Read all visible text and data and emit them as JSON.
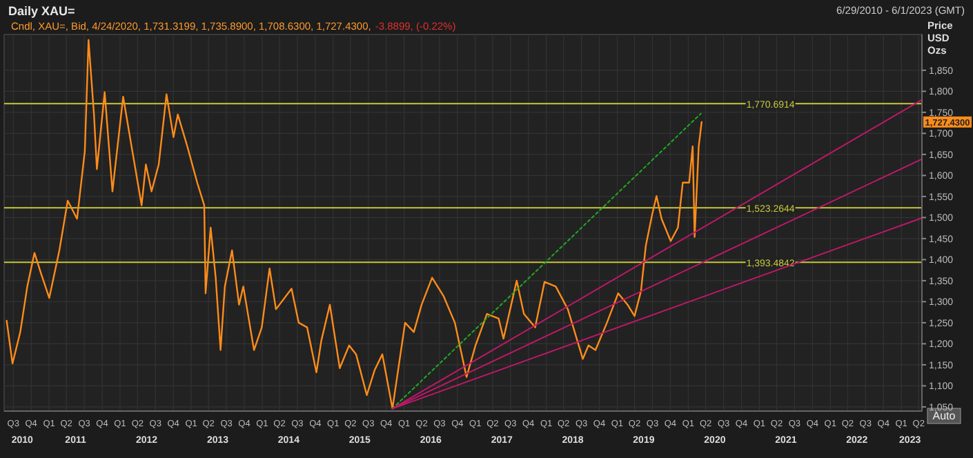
{
  "chart_data": {
    "type": "line",
    "title": "Daily XAU=",
    "subtitle": "6/29/2010 - 6/1/2023 (GMT)",
    "ylabel": "Price USD Ozs",
    "xlim": [
      "2010-06-29",
      "2023-06-01"
    ],
    "ylim": [
      1040,
      1935
    ],
    "yticks": [
      {
        "value": 1050,
        "label": "1,050"
      },
      {
        "value": 1100,
        "label": "1,100"
      },
      {
        "value": 1150,
        "label": "1,150"
      },
      {
        "value": 1200,
        "label": "1,200"
      },
      {
        "value": 1250,
        "label": "1,250"
      },
      {
        "value": 1300,
        "label": "1,300"
      },
      {
        "value": 1350,
        "label": "1,350"
      },
      {
        "value": 1400,
        "label": "1,400"
      },
      {
        "value": 1450,
        "label": "1,450"
      },
      {
        "value": 1500,
        "label": "1,500"
      },
      {
        "value": 1550,
        "label": "1,550"
      },
      {
        "value": 1600,
        "label": "1,600"
      },
      {
        "value": 1650,
        "label": "1,650"
      },
      {
        "value": 1700,
        "label": "1,700"
      },
      {
        "value": 1750,
        "label": "1,750"
      },
      {
        "value": 1800,
        "label": "1,800"
      },
      {
        "value": 1850,
        "label": "1,850"
      }
    ],
    "xticks": [
      {
        "value": "2010-08-15",
        "label": "Q3"
      },
      {
        "value": "2010-11-15",
        "label": "Q4"
      },
      {
        "value": "2011-02-15",
        "label": "Q1"
      },
      {
        "value": "2011-05-15",
        "label": "Q2"
      },
      {
        "value": "2011-08-15",
        "label": "Q3"
      },
      {
        "value": "2011-11-15",
        "label": "Q4"
      },
      {
        "value": "2012-02-15",
        "label": "Q1"
      },
      {
        "value": "2012-05-15",
        "label": "Q2"
      },
      {
        "value": "2012-08-15",
        "label": "Q3"
      },
      {
        "value": "2012-11-15",
        "label": "Q4"
      },
      {
        "value": "2013-02-15",
        "label": "Q1"
      },
      {
        "value": "2013-05-15",
        "label": "Q2"
      },
      {
        "value": "2013-08-15",
        "label": "Q3"
      },
      {
        "value": "2013-11-15",
        "label": "Q4"
      },
      {
        "value": "2014-02-15",
        "label": "Q1"
      },
      {
        "value": "2014-05-15",
        "label": "Q2"
      },
      {
        "value": "2014-08-15",
        "label": "Q3"
      },
      {
        "value": "2014-11-15",
        "label": "Q4"
      },
      {
        "value": "2015-02-15",
        "label": "Q1"
      },
      {
        "value": "2015-05-15",
        "label": "Q2"
      },
      {
        "value": "2015-08-15",
        "label": "Q3"
      },
      {
        "value": "2015-11-15",
        "label": "Q4"
      },
      {
        "value": "2016-02-15",
        "label": "Q1"
      },
      {
        "value": "2016-05-15",
        "label": "Q2"
      },
      {
        "value": "2016-08-15",
        "label": "Q3"
      },
      {
        "value": "2016-11-15",
        "label": "Q4"
      },
      {
        "value": "2017-02-15",
        "label": "Q1"
      },
      {
        "value": "2017-05-15",
        "label": "Q2"
      },
      {
        "value": "2017-08-15",
        "label": "Q3"
      },
      {
        "value": "2017-11-15",
        "label": "Q4"
      },
      {
        "value": "2018-02-15",
        "label": "Q1"
      },
      {
        "value": "2018-05-15",
        "label": "Q2"
      },
      {
        "value": "2018-08-15",
        "label": "Q3"
      },
      {
        "value": "2018-11-15",
        "label": "Q4"
      },
      {
        "value": "2019-02-15",
        "label": "Q1"
      },
      {
        "value": "2019-05-15",
        "label": "Q2"
      },
      {
        "value": "2019-08-15",
        "label": "Q3"
      },
      {
        "value": "2019-11-15",
        "label": "Q4"
      },
      {
        "value": "2020-02-15",
        "label": "Q1"
      },
      {
        "value": "2020-05-15",
        "label": "Q2"
      },
      {
        "value": "2020-08-15",
        "label": "Q3"
      },
      {
        "value": "2020-11-15",
        "label": "Q4"
      },
      {
        "value": "2021-02-15",
        "label": "Q1"
      },
      {
        "value": "2021-05-15",
        "label": "Q2"
      },
      {
        "value": "2021-08-15",
        "label": "Q3"
      },
      {
        "value": "2021-11-15",
        "label": "Q4"
      },
      {
        "value": "2022-02-15",
        "label": "Q1"
      },
      {
        "value": "2022-05-15",
        "label": "Q2"
      },
      {
        "value": "2022-08-15",
        "label": "Q3"
      },
      {
        "value": "2022-11-15",
        "label": "Q4"
      },
      {
        "value": "2023-02-15",
        "label": "Q1"
      },
      {
        "value": "2023-05-15",
        "label": "Q2"
      }
    ],
    "grid": true,
    "series": [
      {
        "color": "#ff8c1a",
        "x": [
          "2010-07-12",
          "2010-08-11",
          "2010-09-20",
          "2010-10-26",
          "2010-12-02",
          "2011-01-04",
          "2011-02-16",
          "2011-04-09",
          "2011-05-22",
          "2011-07-09",
          "2011-08-18",
          "2011-09-06",
          "2011-10-04",
          "2011-10-19",
          "2011-11-28",
          "2012-01-07",
          "2012-03-02",
          "2012-04-22",
          "2012-06-05",
          "2012-06-27",
          "2012-07-26",
          "2012-09-01",
          "2012-10-11",
          "2012-11-16",
          "2012-12-08",
          "2013-01-26",
          "2013-03-18",
          "2013-04-23",
          "2013-04-30",
          "2013-05-26",
          "2013-06-21",
          "2013-07-16",
          "2013-08-07",
          "2013-09-13",
          "2013-10-19",
          "2013-11-10",
          "2014-01-04",
          "2014-02-13",
          "2014-03-25",
          "2014-04-27",
          "2014-07-16",
          "2014-08-22",
          "2014-10-04",
          "2014-11-21",
          "2014-12-16",
          "2015-01-29",
          "2015-03-21",
          "2015-05-08",
          "2015-06-13",
          "2015-08-07",
          "2015-09-16",
          "2015-10-26",
          "2015-12-17",
          "2016-02-20",
          "2016-04-05",
          "2016-05-15",
          "2016-07-08",
          "2016-09-04",
          "2016-11-02",
          "2017-01-01",
          "2017-02-16",
          "2017-04-16",
          "2017-06-15",
          "2017-07-10",
          "2017-09-16",
          "2017-10-23",
          "2017-12-20",
          "2018-02-06",
          "2018-04-05",
          "2018-06-06",
          "2018-08-22",
          "2018-09-20",
          "2018-10-26",
          "2018-12-24",
          "2019-02-20",
          "2019-04-09",
          "2019-05-15",
          "2019-06-17",
          "2019-07-12",
          "2019-08-14",
          "2019-09-05",
          "2019-10-01",
          "2019-11-17",
          "2019-12-24",
          "2020-01-18",
          "2020-02-20",
          "2020-03-09",
          "2020-03-19",
          "2020-04-09",
          "2020-04-24"
        ],
        "values": [
          1255,
          1153,
          1228,
          1336,
          1416,
          1368,
          1309,
          1422,
          1540,
          1497,
          1658,
          1922,
          1745,
          1615,
          1798,
          1562,
          1787,
          1648,
          1529,
          1626,
          1562,
          1626,
          1793,
          1691,
          1745,
          1669,
          1583,
          1529,
          1320,
          1476,
          1357,
          1185,
          1336,
          1422,
          1293,
          1336,
          1185,
          1239,
          1379,
          1282,
          1331,
          1250,
          1239,
          1132,
          1207,
          1293,
          1142,
          1196,
          1175,
          1078,
          1137,
          1175,
          1046,
          1250,
          1228,
          1293,
          1357,
          1314,
          1250,
          1121,
          1196,
          1271,
          1260,
          1212,
          1350,
          1271,
          1239,
          1347,
          1336,
          1282,
          1164,
          1196,
          1185,
          1250,
          1320,
          1293,
          1266,
          1325,
          1433,
          1508,
          1551,
          1497,
          1444,
          1476,
          1583,
          1583,
          1669,
          1454,
          1669,
          1727
        ]
      },
      {
        "color": "#22aa22",
        "line_style": "dotted",
        "x": [
          "2015-12-17",
          "2020-04-20"
        ],
        "values": [
          1046,
          1747
        ]
      },
      {
        "color": "#c0186a",
        "x": [
          "2015-12-17",
          "2023-06-01"
        ],
        "values": [
          1046,
          1780
        ]
      },
      {
        "color": "#c0186a",
        "x": [
          "2015-12-17",
          "2023-06-01"
        ],
        "values": [
          1046,
          1639
        ]
      },
      {
        "color": "#c0186a",
        "x": [
          "2015-12-17",
          "2023-06-01"
        ],
        "values": [
          1046,
          1499
        ]
      }
    ],
    "ref_lines": [
      {
        "axis": "y",
        "value": 1770.6914,
        "label": "1,770.6914",
        "color": "#c8c83c"
      },
      {
        "axis": "y",
        "value": 1523.2644,
        "label": "1,523.2644",
        "color": "#c8c83c"
      },
      {
        "axis": "y",
        "value": 1393.4842,
        "label": "1,393.4842",
        "color": "#c8c83c"
      }
    ],
    "annotations": [
      "Cndl, XAU=, Bid, 4/24/2020, 1,731.3199, 1,735.8900, 1,708.6300, 1,727.4300,",
      "-3.8899, (-0.22%)",
      "Auto",
      "1,727.4300",
      "2010",
      "2011",
      "2012",
      "2013",
      "2014",
      "2015",
      "2016",
      "2017",
      "2018",
      "2019",
      "2020",
      "2021",
      "2022",
      "2023"
    ]
  }
}
